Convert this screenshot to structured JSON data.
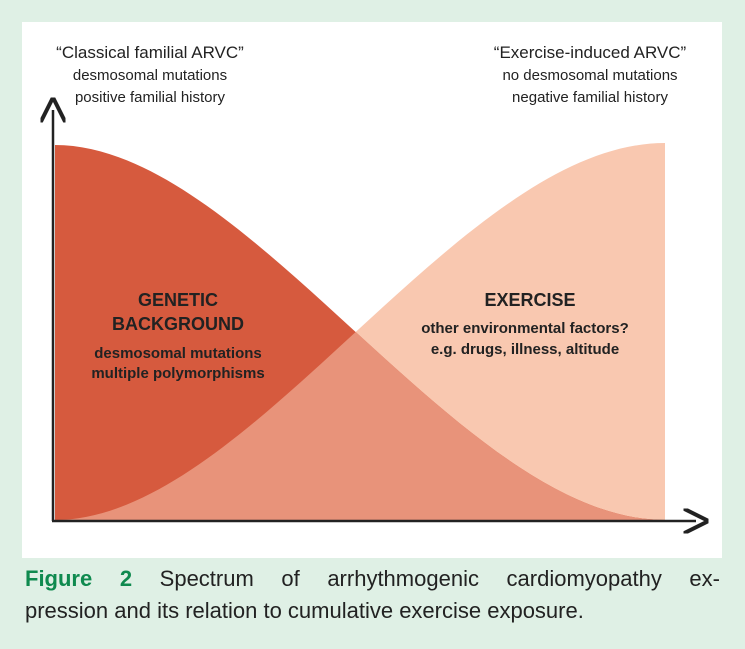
{
  "figure": {
    "left_header": {
      "title": "“Classical familial ARVC”",
      "line1": "desmosomal mutations",
      "line2": "positive familial history"
    },
    "right_header": {
      "title": "“Exercise-induced ARVC”",
      "line1": "no desmosomal mutations",
      "line2": "negative familial history"
    },
    "left_region": {
      "title1": "GENETIC",
      "title2": "BACKGROUND",
      "line1": "desmosomal mutations",
      "line2": "multiple polymorphisms"
    },
    "right_region": {
      "title": "EXERCISE",
      "line1": "other environmental factors?",
      "line2": "e.g. drugs, illness, altitude"
    }
  },
  "caption": {
    "label": "Figure 2",
    "line1": "Spectrum of arrhythmogenic cardiomyopathy ex-",
    "line2": "pression and its relation to cumulative exercise exposure."
  }
}
